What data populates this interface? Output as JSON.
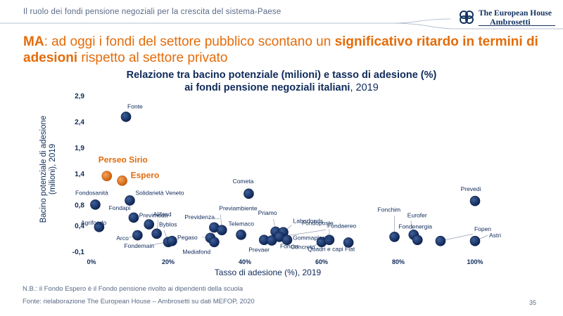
{
  "header": {
    "title": "Il ruolo dei fondi pensione negoziali per la crescita del sistema-Paese",
    "logo_line1": "The European House",
    "logo_line2": "Ambrosetti"
  },
  "headline": {
    "p1": "MA",
    "p2": ": ad oggi i fondi del settore pubblico scontano un ",
    "p3": "significativo ritardo in termini di adesioni",
    "p4": " rispetto al settore privato"
  },
  "chart_title": {
    "line1": "Relazione tra bacino potenziale (milioni) e tasso di adesione (%)",
    "line2": "ai fondi pensione negoziali italiani",
    "year": ", 2019"
  },
  "footer": {
    "note": "N.B.: il Fondo Espero è il Fondo pensione rivolto ai dipendenti della scuola",
    "source": "Fonte: rielaborazione The European House – Ambrosetti su dati MEFOP, 2020",
    "page": "35"
  },
  "colors": {
    "navy": "#13335f",
    "orange": "#e46c0a",
    "bubble_dark": "#0f2a5a",
    "bubble_orange": "#e46c0a"
  },
  "chart_data": {
    "type": "scatter",
    "title": "Relazione tra bacino potenziale (milioni) e tasso di adesione (%) ai fondi pensione negoziali italiani, 2019",
    "xlabel": "Tasso di adesione (%), 2019",
    "ylabel": "Bacino potenziale di adesione (milioni), 2019",
    "xlim": [
      0,
      100
    ],
    "ylim": [
      -0.1,
      2.9
    ],
    "x_ticks": [
      "0%",
      "20%",
      "40%",
      "60%",
      "80%",
      "100%"
    ],
    "x_tick_values": [
      0,
      20,
      40,
      60,
      80,
      100
    ],
    "y_ticks": [
      "-0,1",
      "0,4",
      "0,8",
      "1,4",
      "1,9",
      "2,4",
      "2,9"
    ],
    "y_tick_values": [
      -0.1,
      0.4,
      0.8,
      1.4,
      1.9,
      2.4,
      2.9
    ],
    "points": [
      {
        "name": "Fonte",
        "x": 9,
        "y": 2.49,
        "highlight": false
      },
      {
        "name": "Perseo Sirio",
        "x": 4,
        "y": 1.35,
        "highlight": true
      },
      {
        "name": "Espero",
        "x": 8,
        "y": 1.26,
        "highlight": true
      },
      {
        "name": "Cometa",
        "x": 41,
        "y": 1.01,
        "highlight": false
      },
      {
        "name": "Prevedi",
        "x": 100,
        "y": 0.87,
        "highlight": false
      },
      {
        "name": "Fondosanità",
        "x": 1,
        "y": 0.8,
        "highlight": false
      },
      {
        "name": "Solidarietà Veneto",
        "x": 10,
        "y": 0.88,
        "highlight": false
      },
      {
        "name": "Fondapi",
        "x": 11,
        "y": 0.55,
        "highlight": false
      },
      {
        "name": "Previmoda",
        "x": 15,
        "y": 0.42,
        "highlight": false
      },
      {
        "name": "Agrifondo",
        "x": 2,
        "y": 0.37,
        "highlight": false
      },
      {
        "name": "Alifond",
        "x": 17,
        "y": 0.24,
        "highlight": false
      },
      {
        "name": "Byblos",
        "x": 20,
        "y": 0.08,
        "highlight": false
      },
      {
        "name": "Arco",
        "x": 12,
        "y": 0.21,
        "highlight": false
      },
      {
        "name": "Fondemain",
        "x": 21,
        "y": 0.1,
        "highlight": false
      },
      {
        "name": "Previdenza...",
        "x": 32,
        "y": 0.36,
        "highlight": false
      },
      {
        "name": "Previambiente",
        "x": 34,
        "y": 0.31,
        "highlight": false
      },
      {
        "name": "Telemaco",
        "x": 39,
        "y": 0.22,
        "highlight": false
      },
      {
        "name": "Pegaso",
        "x": 31,
        "y": 0.16,
        "highlight": false
      },
      {
        "name": "Mediafond",
        "x": 32,
        "y": 0.08,
        "highlight": false
      },
      {
        "name": "Priamo",
        "x": 48,
        "y": 0.28,
        "highlight": false
      },
      {
        "name": "Laborfonds",
        "x": 50,
        "y": 0.27,
        "highlight": false
      },
      {
        "name": "Prevaer",
        "x": 45,
        "y": 0.12,
        "highlight": false
      },
      {
        "name": "Gommaplastica",
        "x": 47,
        "y": 0.11,
        "highlight": false
      },
      {
        "name": "Fondaereo",
        "x": 49,
        "y": 0.18,
        "highlight": false
      },
      {
        "name": "Foncer",
        "x": 51,
        "y": 0.12,
        "highlight": false
      },
      {
        "name": "Concreto",
        "x": 60,
        "y": 0.08,
        "highlight": false
      },
      {
        "name": "Fondoposte",
        "x": 62,
        "y": 0.12,
        "highlight": false
      },
      {
        "name": "Quadri e capi Fiat",
        "x": 67,
        "y": 0.07,
        "highlight": false
      },
      {
        "name": "Fonchim",
        "x": 79,
        "y": 0.18,
        "highlight": false
      },
      {
        "name": "Eurofer",
        "x": 84,
        "y": 0.22,
        "highlight": false
      },
      {
        "name": "Fondenergia",
        "x": 85,
        "y": 0.12,
        "highlight": false
      },
      {
        "name": "Fopen",
        "x": 91,
        "y": 0.1,
        "highlight": false
      },
      {
        "name": "Astri",
        "x": 100,
        "y": 0.1,
        "highlight": false
      }
    ]
  }
}
